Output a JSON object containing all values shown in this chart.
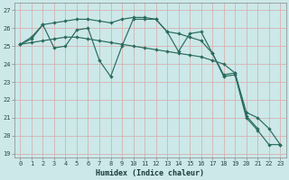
{
  "xlabel": "Humidex (Indice chaleur)",
  "bg_color": "#cce8e8",
  "line_color": "#2a6b5e",
  "grid_color": "#d8a8a8",
  "ylim": [
    18.8,
    27.4
  ],
  "xlim": [
    -0.5,
    23.5
  ],
  "yticks": [
    19,
    20,
    21,
    22,
    23,
    24,
    25,
    26,
    27
  ],
  "xticks": [
    0,
    1,
    2,
    3,
    4,
    5,
    6,
    7,
    8,
    9,
    10,
    11,
    12,
    13,
    14,
    15,
    16,
    17,
    18,
    19,
    20,
    21,
    22,
    23
  ],
  "line1_x": [
    0,
    1,
    2,
    3,
    4,
    5,
    6,
    7,
    8,
    9,
    10,
    11,
    12,
    13,
    14,
    15,
    16,
    17,
    18,
    19,
    20,
    21
  ],
  "line1_y": [
    25.1,
    25.5,
    26.2,
    26.3,
    26.4,
    26.5,
    26.5,
    26.4,
    26.3,
    26.5,
    26.6,
    26.6,
    26.5,
    25.8,
    25.7,
    25.5,
    25.3,
    24.6,
    23.4,
    23.5,
    21.1,
    20.4
  ],
  "line2_x": [
    0,
    1,
    2,
    3,
    4,
    5,
    6,
    7,
    8,
    9,
    10,
    11,
    12,
    13,
    14,
    15,
    16,
    17,
    18,
    19,
    20,
    21,
    22,
    23
  ],
  "line2_y": [
    25.1,
    25.2,
    25.3,
    25.4,
    25.5,
    25.5,
    25.4,
    25.3,
    25.2,
    25.1,
    25.0,
    24.9,
    24.8,
    24.7,
    24.6,
    24.5,
    24.4,
    24.2,
    24.0,
    23.5,
    21.3,
    21.0,
    20.4,
    19.5
  ],
  "line3_x": [
    0,
    1,
    2,
    3,
    4,
    5,
    6,
    7,
    8,
    9,
    10,
    11,
    12,
    13,
    14,
    15,
    16,
    17,
    18,
    19,
    20,
    21,
    22,
    23
  ],
  "line3_y": [
    25.1,
    25.4,
    26.2,
    24.9,
    25.0,
    25.9,
    26.0,
    24.2,
    23.3,
    25.0,
    26.5,
    26.5,
    26.5,
    25.8,
    24.7,
    25.7,
    25.8,
    24.6,
    23.3,
    23.4,
    21.0,
    20.3,
    19.5,
    19.5
  ]
}
